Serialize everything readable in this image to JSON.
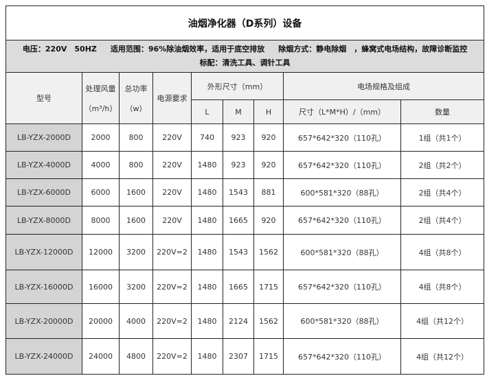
{
  "title": "油烟净化器（D系列）设备",
  "info": {
    "voltage": "电压：220V　50HZ",
    "scope": "适用范围：96%除油烟效率，适用于底空排放",
    "method": "除烟方式：静电除烟　，蜂窝式电场结构，故障诊断监控",
    "standard": "标配：清洗工具、调针工具"
  },
  "headers": {
    "model": "型号",
    "airflow": "处理风量",
    "airflow_unit": "（m³/h）",
    "power": "总功率",
    "power_unit": "（w）",
    "supply": "电源要求",
    "dims": "外形尺寸（mm）",
    "L": "L",
    "M": "M",
    "H": "H",
    "field": "电场规格及组成",
    "field_size": "尺寸（L*M*H）/（mm）",
    "field_qty": "数量"
  },
  "rows": [
    [
      "LB-YZX-2000D",
      "2000",
      "800",
      "220V",
      "740",
      "923",
      "920",
      "657*642*320（110孔）",
      "1组（共1个）"
    ],
    [
      "LB-YZX-4000D",
      "4000",
      "800",
      "220V",
      "1480",
      "923",
      "920",
      "657*642*320（110孔）",
      "2组（共2个）"
    ],
    [
      "LB-YZX-6000D",
      "6000",
      "1600",
      "220V",
      "1480",
      "1543",
      "881",
      "600*581*320（88孔）",
      "2组（共4个）"
    ],
    [
      "LB-YZX-8000D",
      "8000",
      "1600",
      "220V",
      "1480",
      "1665",
      "920",
      "657*642*320（110孔）",
      "2组（共4个）"
    ],
    [
      "LB-YZX-12000D",
      "12000",
      "3200",
      "220V=2",
      "1480",
      "1543",
      "1562",
      "600*581*320（88孔）",
      "4组（共8个）"
    ],
    [
      "LB-YZX-16000D",
      "16000",
      "3200",
      "220V=2",
      "1480",
      "1665",
      "1715",
      "657*642*320（110孔）",
      "4组（共8个）"
    ],
    [
      "LB-YZX-20000D",
      "20000",
      "4000",
      "220V=2",
      "1480",
      "2124",
      "1562",
      "600*581*320（88孔）",
      "4组（共12个）"
    ],
    [
      "LB-YZX-24000D",
      "24000",
      "4800",
      "220V=2",
      "1480",
      "2307",
      "1715",
      "657*642*320（110孔）",
      "4组（共12个）"
    ]
  ]
}
